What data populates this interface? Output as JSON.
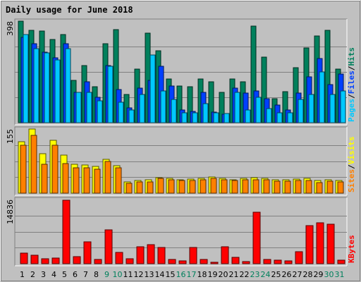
{
  "chart_data": {
    "type": "bar",
    "title": "Daily usage for June 2018",
    "categories": [
      "1",
      "2",
      "3",
      "4",
      "5",
      "6",
      "7",
      "8",
      "9",
      "10",
      "11",
      "12",
      "13",
      "14",
      "15",
      "16",
      "17",
      "18",
      "19",
      "20",
      "21",
      "22",
      "23",
      "24",
      "25",
      "26",
      "27",
      "28",
      "29",
      "30",
      "31"
    ],
    "weekend_days": [
      "9",
      "10",
      "16",
      "17",
      "23",
      "24",
      "30",
      "31"
    ],
    "panels": [
      {
        "id": "top",
        "ymax_label": "398",
        "ylim": [
          0,
          398
        ],
        "legend": [
          "Pages",
          "/",
          "Files",
          "/",
          "Hits"
        ],
        "series": [
          {
            "name": "Hits",
            "values": [
              398,
              363,
              360,
              325,
              345,
              165,
              225,
              140,
              310,
              365,
              110,
              210,
              350,
              283,
              170,
              144,
              140,
              170,
              160,
              120,
              170,
              160,
              378,
              258,
              94,
              121,
              216,
              292,
              340,
              361,
              210
            ]
          },
          {
            "name": "Files",
            "values": [
              335,
              310,
              277,
              255,
              310,
              120,
              160,
              100,
              225,
              130,
              58,
              135,
              165,
              220,
              145,
              50,
              44,
              120,
              42,
              34,
              135,
              115,
              125,
              95,
              70,
              51,
              117,
              180,
              252,
              150,
              190
            ]
          },
          {
            "name": "Pages",
            "values": [
              345,
              290,
              273,
              245,
              290,
              120,
              120,
              85,
              220,
              80,
              50,
              110,
              265,
              125,
              90,
              40,
              40,
              75,
              40,
              35,
              120,
              50,
              100,
              55,
              40,
              40,
              90,
              110,
              200,
              110,
              125
            ]
          }
        ]
      },
      {
        "id": "middle",
        "ymax_label": "155",
        "ylim": [
          0,
          155
        ],
        "legend": [
          "Sites",
          "/",
          "Visits"
        ],
        "series": [
          {
            "name": "Visits",
            "values": [
              125,
              155,
              95,
              128,
              92,
              70,
              68,
              64,
              82,
              66,
              27,
              30,
              32,
              38,
              36,
              33,
              34,
              35,
              40,
              35,
              33,
              36,
              37,
              35,
              32,
              32,
              34,
              35,
              30,
              32,
              30
            ]
          },
          {
            "name": "Sites",
            "values": [
              115,
              140,
              70,
              115,
              72,
              61,
              61,
              58,
              77,
              61,
              24,
              27,
              27,
              35,
              33,
              31,
              31,
              32,
              36,
              33,
              30,
              33,
              33,
              32,
              29,
              29,
              30,
              31,
              26,
              29,
              27
            ]
          }
        ]
      },
      {
        "id": "bottom",
        "ymax_label": "14836",
        "ylim": [
          0,
          14836
        ],
        "legend": [
          "KBytes"
        ],
        "series": [
          {
            "name": "KBytes",
            "values": [
              2400,
              1900,
              1150,
              1350,
              14700,
              1700,
              5000,
              1050,
              7900,
              2550,
              1080,
              3850,
              4450,
              3800,
              920,
              580,
              3700,
              1030,
              350,
              3900,
              1530,
              530,
              11900,
              1000,
              780,
              630,
              2700,
              8800,
              9500,
              9200,
              880
            ]
          }
        ]
      }
    ],
    "colors": {
      "hits": "#00805c",
      "files": "#0040ff",
      "pages": "#00c8ff",
      "visits": "#ffff00",
      "sites": "#ff8000",
      "kbytes": "#ff0000",
      "title": "#0000a0",
      "weekday_label": "#000000",
      "weekend_label": "#00805c"
    }
  }
}
